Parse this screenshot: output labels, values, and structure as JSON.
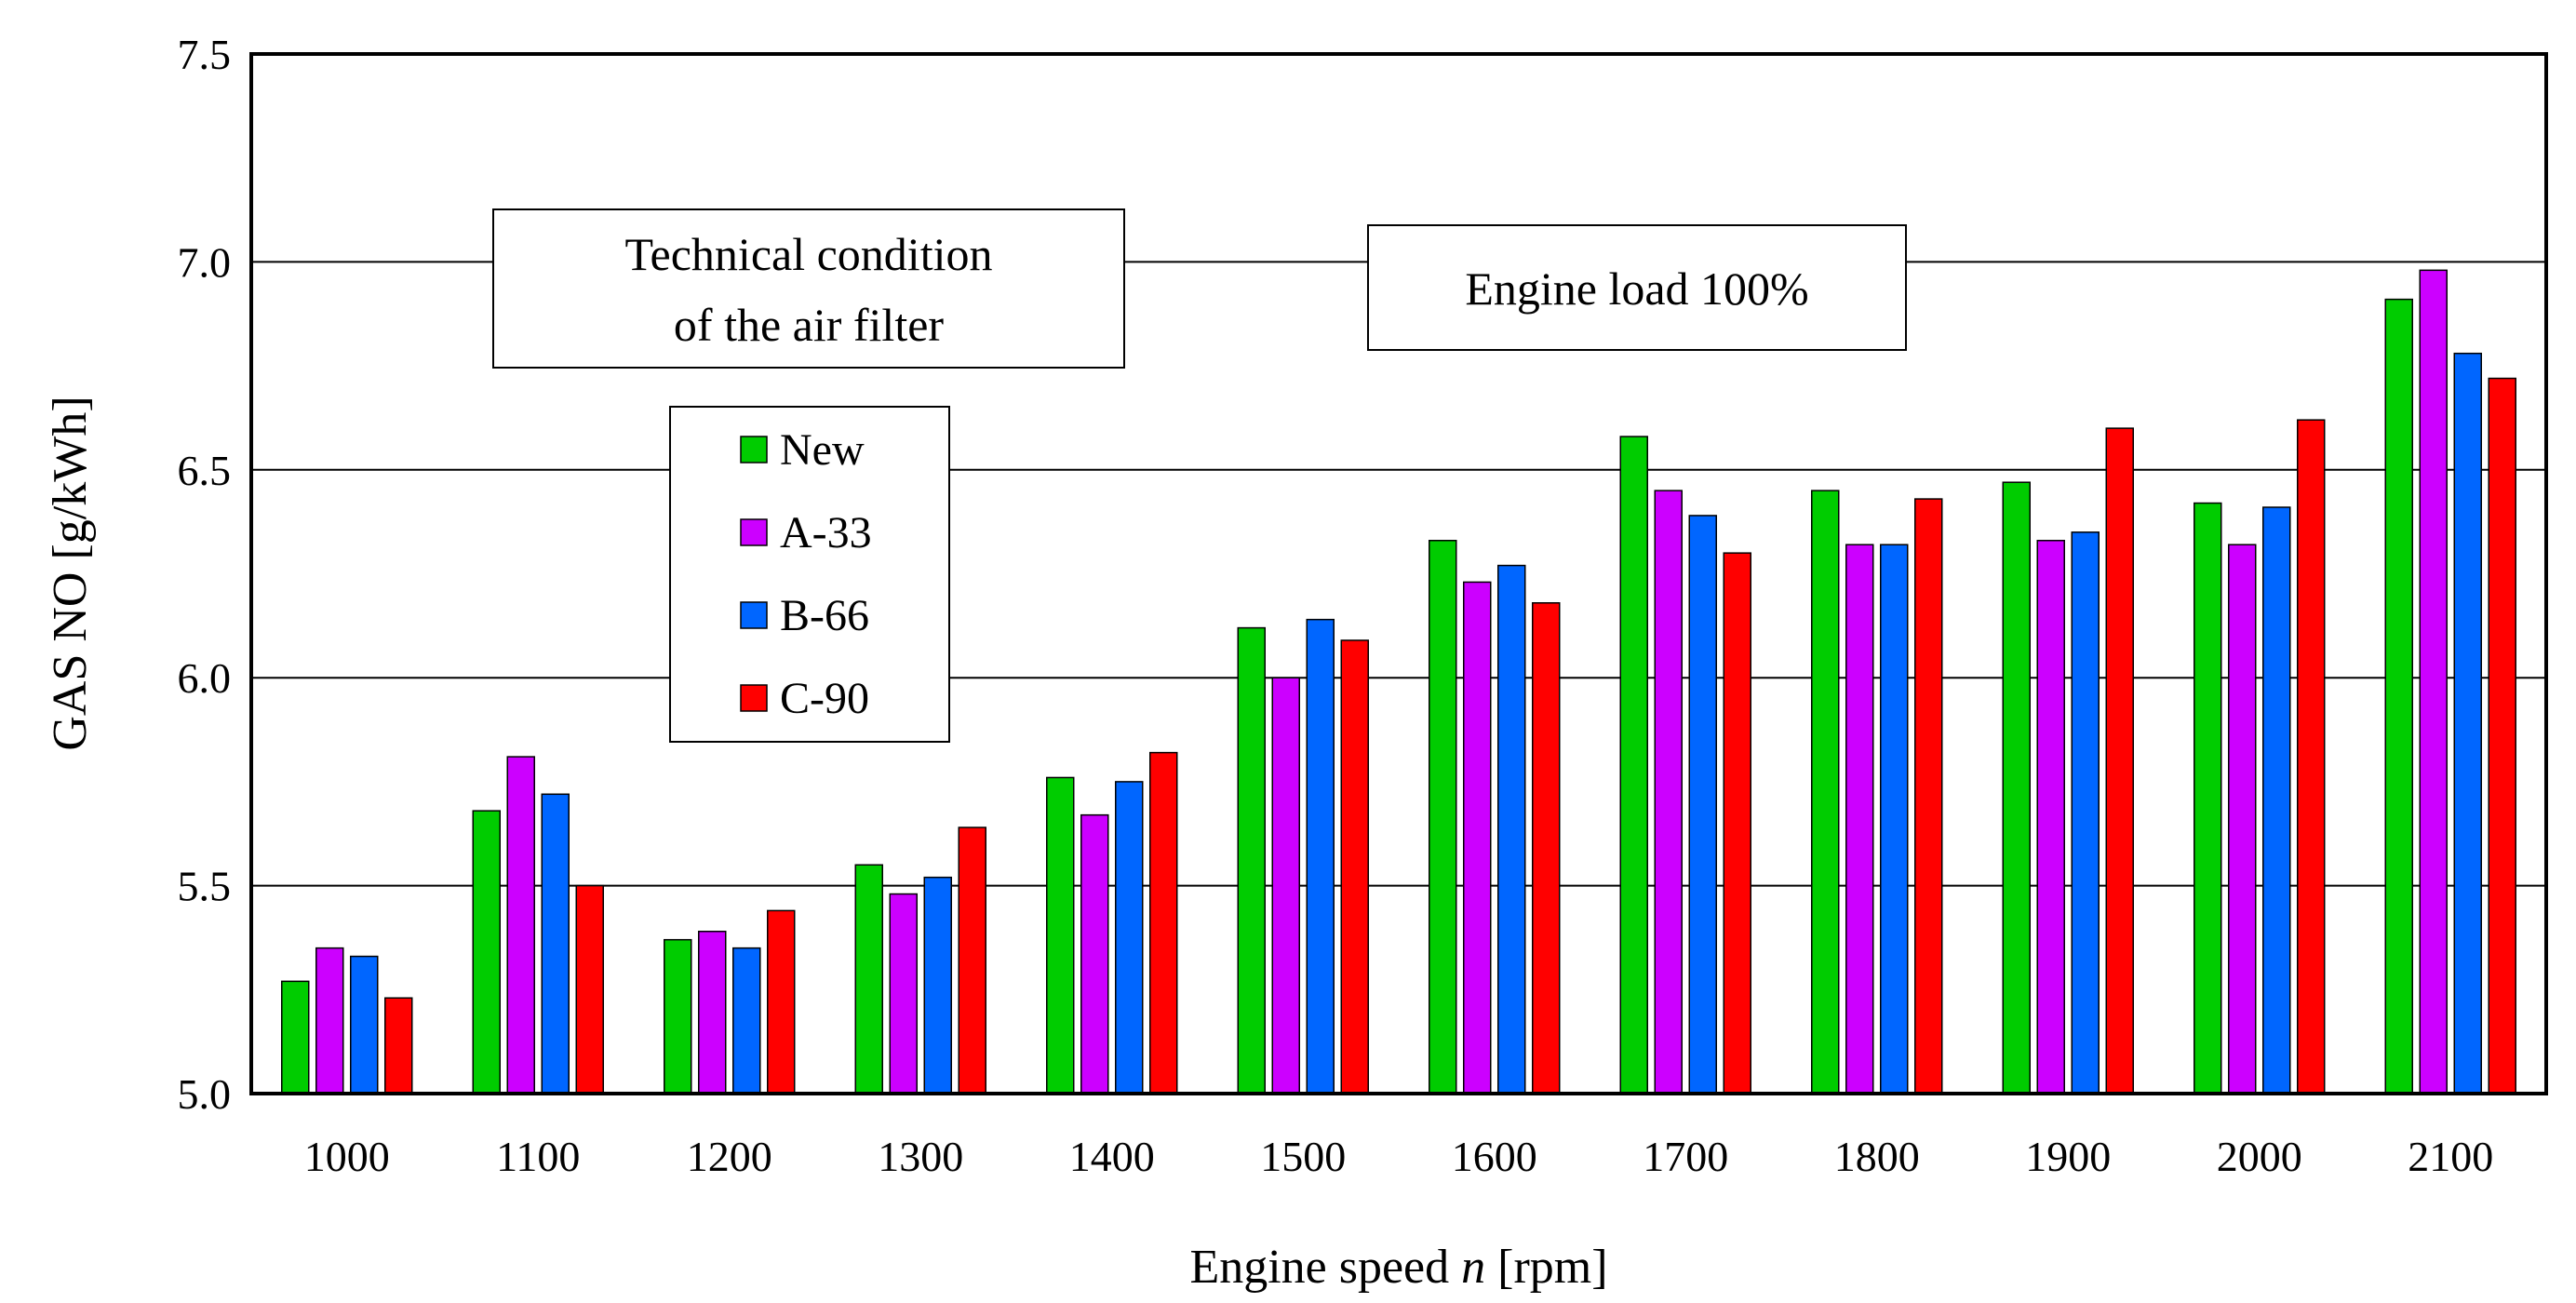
{
  "chart_data": {
    "type": "bar",
    "title": "",
    "xlabel_prefix": "Engine speed ",
    "xlabel_var": "n",
    "xlabel_suffix": " [rpm]",
    "ylabel": "GAS NO [g/kWh]",
    "ylim": [
      5.0,
      7.5
    ],
    "yticks": [
      "5.0",
      "5.5",
      "6.0",
      "6.5",
      "7.0",
      "7.5"
    ],
    "grid": true,
    "legend_position": "upper-left",
    "legend_title_line1": "Technical condition",
    "legend_title_line2": "of the air filter",
    "annotation": "Engine load 100%",
    "categories": [
      "1000",
      "1100",
      "1200",
      "1300",
      "1400",
      "1500",
      "1600",
      "1700",
      "1800",
      "1900",
      "2000",
      "2100"
    ],
    "series": [
      {
        "name": "New",
        "color": "#00cc00",
        "values": [
          5.27,
          5.68,
          5.37,
          5.55,
          5.76,
          6.12,
          6.33,
          6.58,
          6.45,
          6.47,
          6.42,
          6.91
        ]
      },
      {
        "name": "A-33",
        "color": "#cc00ff",
        "values": [
          5.35,
          5.81,
          5.39,
          5.48,
          5.67,
          6.0,
          6.23,
          6.45,
          6.32,
          6.33,
          6.32,
          6.98
        ]
      },
      {
        "name": "B-66",
        "color": "#0066ff",
        "values": [
          5.33,
          5.72,
          5.35,
          5.52,
          5.75,
          6.14,
          6.27,
          6.39,
          6.32,
          6.35,
          6.41,
          6.78
        ]
      },
      {
        "name": "C-90",
        "color": "#ff0000",
        "values": [
          5.23,
          5.5,
          5.44,
          5.64,
          5.82,
          6.09,
          6.18,
          6.3,
          6.43,
          6.6,
          6.62,
          6.72
        ]
      }
    ]
  }
}
